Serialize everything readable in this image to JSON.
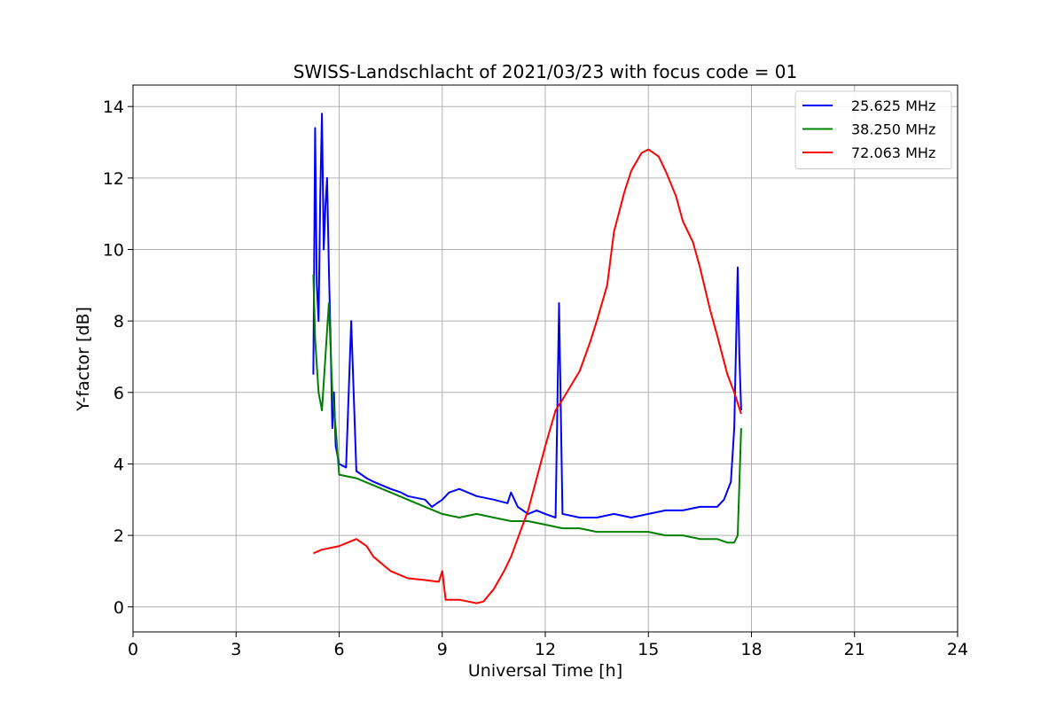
{
  "chart_data": {
    "type": "line",
    "title": "SWISS-Landschlacht of 2021/03/23 with focus code = 01",
    "xlabel": "Universal Time [h]",
    "ylabel": "Y-factor [dB]",
    "xlim": [
      0,
      24
    ],
    "ylim": [
      -0.7,
      14.6
    ],
    "xticks": [
      0,
      3,
      6,
      9,
      12,
      15,
      18,
      21,
      24
    ],
    "yticks": [
      0,
      2,
      4,
      6,
      8,
      10,
      12,
      14
    ],
    "grid": true,
    "legend_position": "top-right",
    "series": [
      {
        "name": "25.625 MHz",
        "color": "#0000ff",
        "x": [
          5.25,
          5.3,
          5.35,
          5.4,
          5.45,
          5.5,
          5.55,
          5.6,
          5.65,
          5.7,
          5.75,
          5.8,
          5.85,
          5.9,
          6.0,
          6.2,
          6.35,
          6.5,
          6.8,
          7.0,
          7.5,
          7.8,
          8.0,
          8.5,
          8.7,
          8.85,
          9.0,
          9.2,
          9.5,
          10.0,
          10.5,
          10.9,
          11.0,
          11.2,
          11.5,
          11.75,
          12.0,
          12.3,
          12.4,
          12.5,
          13.0,
          13.5,
          14.0,
          14.5,
          15.0,
          15.5,
          16.0,
          16.5,
          17.0,
          17.2,
          17.4,
          17.5,
          17.6,
          17.65,
          17.7
        ],
        "y": [
          6.5,
          13.4,
          9.0,
          8.0,
          11.5,
          13.8,
          10.0,
          11.2,
          12.0,
          9.5,
          7.5,
          5.0,
          6.0,
          4.5,
          4.0,
          3.9,
          8.0,
          3.8,
          3.6,
          3.5,
          3.3,
          3.2,
          3.1,
          3.0,
          2.8,
          2.9,
          3.0,
          3.2,
          3.3,
          3.1,
          3.0,
          2.9,
          3.2,
          2.8,
          2.6,
          2.7,
          2.6,
          2.5,
          8.5,
          2.6,
          2.5,
          2.5,
          2.6,
          2.5,
          2.6,
          2.7,
          2.7,
          2.8,
          2.8,
          3.0,
          3.5,
          5.0,
          9.5,
          7.0,
          5.5
        ]
      },
      {
        "name": "38.250 MHz",
        "color": "#008000",
        "x": [
          5.25,
          5.3,
          5.4,
          5.5,
          5.6,
          5.7,
          5.8,
          5.9,
          6.0,
          6.5,
          7.0,
          7.5,
          8.0,
          8.5,
          9.0,
          9.5,
          10.0,
          10.5,
          11.0,
          11.5,
          12.0,
          12.5,
          13.0,
          13.5,
          14.0,
          14.5,
          15.0,
          15.5,
          16.0,
          16.5,
          17.0,
          17.3,
          17.5,
          17.6,
          17.7
        ],
        "y": [
          9.3,
          7.5,
          6.0,
          5.5,
          7.0,
          8.5,
          6.0,
          5.0,
          3.7,
          3.6,
          3.4,
          3.2,
          3.0,
          2.8,
          2.6,
          2.5,
          2.6,
          2.5,
          2.4,
          2.4,
          2.3,
          2.2,
          2.2,
          2.1,
          2.1,
          2.1,
          2.1,
          2.0,
          2.0,
          1.9,
          1.9,
          1.8,
          1.8,
          2.0,
          5.0
        ]
      },
      {
        "name": "72.063 MHz",
        "color": "#ff0000",
        "x": [
          5.25,
          5.5,
          6.0,
          6.5,
          6.8,
          7.0,
          7.5,
          8.0,
          8.5,
          8.9,
          9.0,
          9.1,
          9.5,
          10.0,
          10.2,
          10.5,
          10.8,
          11.0,
          11.5,
          12.0,
          12.3,
          12.5,
          13.0,
          13.3,
          13.5,
          13.8,
          14.0,
          14.3,
          14.5,
          14.8,
          15.0,
          15.3,
          15.5,
          15.8,
          16.0,
          16.3,
          16.5,
          16.8,
          17.0,
          17.3,
          17.5,
          17.7
        ],
        "y": [
          1.5,
          1.6,
          1.7,
          1.9,
          1.7,
          1.4,
          1.0,
          0.8,
          0.75,
          0.7,
          1.0,
          0.2,
          0.2,
          0.1,
          0.15,
          0.5,
          1.0,
          1.4,
          2.7,
          4.5,
          5.5,
          5.8,
          6.6,
          7.4,
          8.0,
          9.0,
          10.5,
          11.6,
          12.2,
          12.7,
          12.8,
          12.6,
          12.2,
          11.5,
          10.8,
          10.2,
          9.5,
          8.3,
          7.6,
          6.5,
          6.0,
          5.4
        ]
      }
    ]
  }
}
